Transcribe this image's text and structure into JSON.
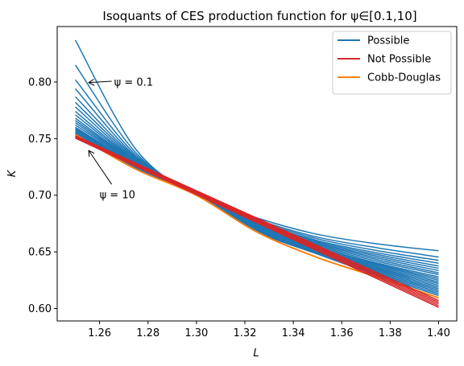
{
  "chart_data": {
    "type": "line",
    "title": "Isoquants of CES production function for ψ∈[0.1,10]",
    "xlabel": "L",
    "ylabel": "K",
    "xlim": [
      1.2425,
      1.4075
    ],
    "ylim": [
      0.589,
      0.849
    ],
    "xticks": [
      1.26,
      1.28,
      1.3,
      1.32,
      1.34,
      1.36,
      1.38,
      1.4
    ],
    "xtick_labels": [
      "1.26",
      "1.28",
      "1.30",
      "1.32",
      "1.34",
      "1.36",
      "1.38",
      "1.40"
    ],
    "yticks": [
      0.6,
      0.65,
      0.7,
      0.75,
      0.8
    ],
    "ytick_labels": [
      "0.60",
      "0.65",
      "0.70",
      "0.75",
      "0.80"
    ],
    "grid": false,
    "legend_position": "top-right",
    "legend": [
      {
        "label": "Possible",
        "color": "#1f77b4"
      },
      {
        "label": "Not Possible",
        "color": "#d62728"
      },
      {
        "label": "Cobb-Douglas",
        "color": "#ff7f0e"
      }
    ],
    "annotations": [
      {
        "text": "ψ = 0.1",
        "text_x": 1.266,
        "text_y": 0.8,
        "arrow_x": 1.2555,
        "arrow_y": 0.7995
      },
      {
        "text": "ψ = 10",
        "text_x": 1.26,
        "text_y": 0.7005,
        "arrow_x": 1.2555,
        "arrow_y": 0.7395
      }
    ],
    "series": [
      {
        "group": "Possible",
        "color": "#1f77b4",
        "x": [
          1.25,
          1.275,
          1.3,
          1.325,
          1.35,
          1.375,
          1.4
        ],
        "y": [
          0.837,
          0.7405,
          0.7,
          0.68,
          0.6655,
          0.657,
          0.651
        ]
      },
      {
        "group": "Possible",
        "color": "#1f77b4",
        "x": [
          1.25,
          1.275,
          1.3,
          1.325,
          1.35,
          1.375,
          1.4
        ],
        "y": [
          0.815,
          0.7375,
          0.7,
          0.6785,
          0.663,
          0.6535,
          0.6455
        ]
      },
      {
        "group": "Possible",
        "color": "#1f77b4",
        "x": [
          1.25,
          1.275,
          1.3,
          1.325,
          1.35,
          1.375,
          1.4
        ],
        "y": [
          0.802,
          0.7355,
          0.7,
          0.6775,
          0.6615,
          0.651,
          0.6425
        ]
      },
      {
        "group": "Possible",
        "color": "#1f77b4",
        "x": [
          1.25,
          1.275,
          1.3,
          1.325,
          1.35,
          1.375,
          1.4
        ],
        "y": [
          0.794,
          0.734,
          0.7,
          0.6765,
          0.66,
          0.649,
          0.64
        ]
      },
      {
        "group": "Possible",
        "color": "#1f77b4",
        "x": [
          1.25,
          1.275,
          1.3,
          1.325,
          1.35,
          1.375,
          1.4
        ],
        "y": [
          0.787,
          0.733,
          0.7,
          0.676,
          0.659,
          0.6475,
          0.6375
        ]
      },
      {
        "group": "Possible",
        "color": "#1f77b4",
        "x": [
          1.25,
          1.275,
          1.3,
          1.325,
          1.35,
          1.375,
          1.4
        ],
        "y": [
          0.782,
          0.732,
          0.7,
          0.6755,
          0.658,
          0.646,
          0.6355
        ]
      },
      {
        "group": "Possible",
        "color": "#1f77b4",
        "x": [
          1.25,
          1.275,
          1.3,
          1.325,
          1.35,
          1.375,
          1.4
        ],
        "y": [
          0.778,
          0.731,
          0.7,
          0.675,
          0.657,
          0.6445,
          0.6335
        ]
      },
      {
        "group": "Possible",
        "color": "#1f77b4",
        "x": [
          1.25,
          1.275,
          1.3,
          1.325,
          1.35,
          1.375,
          1.4
        ],
        "y": [
          0.774,
          0.7305,
          0.7,
          0.6745,
          0.656,
          0.643,
          0.6315
        ]
      },
      {
        "group": "Possible",
        "color": "#1f77b4",
        "x": [
          1.25,
          1.275,
          1.3,
          1.325,
          1.35,
          1.375,
          1.4
        ],
        "y": [
          0.771,
          0.73,
          0.7,
          0.674,
          0.655,
          0.6415,
          0.63
        ]
      },
      {
        "group": "Possible",
        "color": "#1f77b4",
        "x": [
          1.25,
          1.275,
          1.3,
          1.325,
          1.35,
          1.375,
          1.4
        ],
        "y": [
          0.768,
          0.7295,
          0.7,
          0.6735,
          0.654,
          0.64,
          0.628
        ]
      },
      {
        "group": "Possible",
        "color": "#1f77b4",
        "x": [
          1.25,
          1.275,
          1.3,
          1.325,
          1.35,
          1.375,
          1.4
        ],
        "y": [
          0.766,
          0.729,
          0.7,
          0.673,
          0.6535,
          0.639,
          0.6265
        ]
      },
      {
        "group": "Possible",
        "color": "#1f77b4",
        "x": [
          1.25,
          1.275,
          1.3,
          1.325,
          1.35,
          1.375,
          1.4
        ],
        "y": [
          0.764,
          0.7285,
          0.7,
          0.6725,
          0.6525,
          0.638,
          0.625
        ]
      },
      {
        "group": "Possible",
        "color": "#1f77b4",
        "x": [
          1.25,
          1.275,
          1.3,
          1.325,
          1.35,
          1.375,
          1.4
        ],
        "y": [
          0.762,
          0.728,
          0.7,
          0.672,
          0.652,
          0.637,
          0.6235
        ]
      },
      {
        "group": "Possible",
        "color": "#1f77b4",
        "x": [
          1.25,
          1.275,
          1.3,
          1.325,
          1.35,
          1.375,
          1.4
        ],
        "y": [
          0.76,
          0.7275,
          0.7,
          0.6715,
          0.6515,
          0.636,
          0.622
        ]
      },
      {
        "group": "Possible",
        "color": "#1f77b4",
        "x": [
          1.25,
          1.275,
          1.3,
          1.325,
          1.35,
          1.375,
          1.4
        ],
        "y": [
          0.759,
          0.727,
          0.7,
          0.671,
          0.651,
          0.635,
          0.6205
        ]
      },
      {
        "group": "Possible",
        "color": "#1f77b4",
        "x": [
          1.25,
          1.275,
          1.3,
          1.325,
          1.35,
          1.375,
          1.4
        ],
        "y": [
          0.758,
          0.7265,
          0.7,
          0.6705,
          0.6505,
          0.634,
          0.619
        ]
      },
      {
        "group": "Possible",
        "color": "#1f77b4",
        "x": [
          1.25,
          1.275,
          1.3,
          1.325,
          1.35,
          1.375,
          1.4
        ],
        "y": [
          0.757,
          0.726,
          0.7,
          0.67,
          0.65,
          0.633,
          0.6175
        ]
      },
      {
        "group": "Possible",
        "color": "#1f77b4",
        "x": [
          1.25,
          1.275,
          1.3,
          1.325,
          1.35,
          1.375,
          1.4
        ],
        "y": [
          0.756,
          0.7255,
          0.7,
          0.6695,
          0.6495,
          0.632,
          0.616
        ]
      },
      {
        "group": "Possible",
        "color": "#1f77b4",
        "x": [
          1.25,
          1.275,
          1.3,
          1.325,
          1.35,
          1.375,
          1.4
        ],
        "y": [
          0.755,
          0.725,
          0.7,
          0.669,
          0.649,
          0.631,
          0.6145
        ]
      },
      {
        "group": "Possible",
        "color": "#1f77b4",
        "x": [
          1.25,
          1.275,
          1.3,
          1.325,
          1.35,
          1.375,
          1.4
        ],
        "y": [
          0.7545,
          0.7245,
          0.7,
          0.6685,
          0.6485,
          0.63,
          0.613
        ]
      },
      {
        "group": "Possible",
        "color": "#1f77b4",
        "x": [
          1.25,
          1.275,
          1.3,
          1.325,
          1.35,
          1.375,
          1.4
        ],
        "y": [
          0.754,
          0.724,
          0.7,
          0.668,
          0.648,
          0.629,
          0.6115
        ]
      },
      {
        "group": "Cobb-Douglas",
        "color": "#ff7f0e",
        "x": [
          1.25,
          1.275,
          1.3,
          1.325,
          1.35,
          1.375,
          1.4
        ],
        "y": [
          0.7535,
          0.723,
          0.7,
          0.6675,
          0.645,
          0.6275,
          0.6095
        ]
      },
      {
        "group": "Not Possible",
        "color": "#d62728",
        "x": [
          1.25,
          1.4
        ],
        "y": [
          0.7525,
          0.607
        ]
      },
      {
        "group": "Not Possible",
        "color": "#d62728",
        "x": [
          1.25,
          1.4
        ],
        "y": [
          0.752,
          0.6055
        ]
      },
      {
        "group": "Not Possible",
        "color": "#d62728",
        "x": [
          1.25,
          1.4
        ],
        "y": [
          0.7515,
          0.604
        ]
      },
      {
        "group": "Not Possible",
        "color": "#d62728",
        "x": [
          1.25,
          1.4
        ],
        "y": [
          0.751,
          0.6025
        ]
      },
      {
        "group": "Not Possible",
        "color": "#d62728",
        "x": [
          1.25,
          1.4
        ],
        "y": [
          0.7505,
          0.601
        ]
      }
    ]
  }
}
